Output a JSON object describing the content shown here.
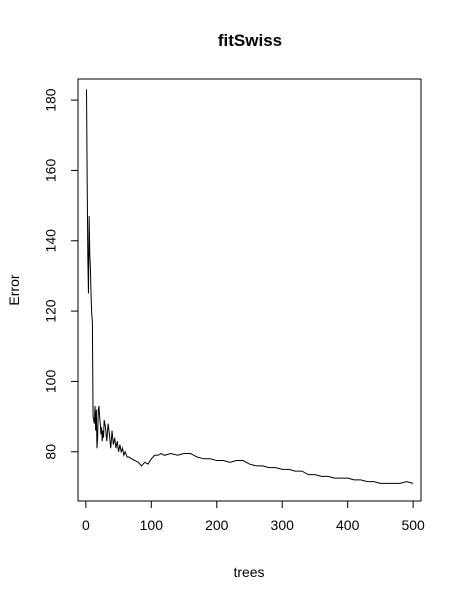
{
  "chart_data": {
    "type": "line",
    "title": "fitSwiss",
    "xlabel": "trees",
    "ylabel": "Error",
    "xlim": [
      -12,
      512
    ],
    "ylim": [
      66,
      186
    ],
    "xticks": [
      0,
      100,
      200,
      300,
      400,
      500
    ],
    "yticks": [
      80,
      100,
      120,
      140,
      160,
      180
    ],
    "xtick_labels": [
      "0",
      "100",
      "200",
      "300",
      "400",
      "500"
    ],
    "ytick_labels": [
      "80",
      "100",
      "120",
      "140",
      "160",
      "180"
    ],
    "grid": false,
    "legend": "none",
    "line_color": "#000000",
    "series": [
      {
        "x": [
          1,
          2,
          3,
          4,
          5,
          6,
          7,
          8,
          9,
          10,
          11,
          12,
          13,
          14,
          15,
          16,
          17,
          18,
          19,
          20,
          21,
          22,
          23,
          24,
          25,
          26,
          27,
          28,
          30,
          32,
          34,
          36,
          38,
          40,
          42,
          44,
          46,
          48,
          50,
          52,
          54,
          56,
          58,
          60,
          63,
          66,
          70,
          75,
          80,
          85,
          90,
          95,
          100,
          105,
          110,
          115,
          120,
          130,
          140,
          150,
          160,
          170,
          180,
          190,
          200,
          210,
          220,
          230,
          240,
          250,
          260,
          270,
          280,
          290,
          300,
          310,
          320,
          330,
          340,
          350,
          360,
          370,
          380,
          390,
          400,
          410,
          420,
          430,
          440,
          450,
          460,
          470,
          480,
          490,
          500
        ],
        "y": [
          183,
          158,
          135,
          125,
          147,
          136,
          132,
          124,
          119,
          117,
          90,
          89,
          88,
          93,
          86,
          92,
          81,
          84,
          92,
          93,
          90,
          88,
          85,
          87,
          83,
          86,
          84,
          89,
          87,
          83,
          88,
          85,
          81,
          86,
          82,
          84,
          81,
          83,
          80,
          82,
          80,
          81,
          79,
          80,
          78.5,
          78.5,
          78,
          77.5,
          77,
          76,
          77,
          76.5,
          78,
          79,
          79,
          79.5,
          79,
          79.5,
          79,
          79.5,
          79.5,
          78.5,
          78,
          78,
          77.5,
          77.5,
          77,
          77.5,
          77.5,
          76.5,
          76,
          76,
          75.5,
          75.5,
          75,
          75,
          74.5,
          74.5,
          73.5,
          73.5,
          73,
          73,
          72.5,
          72.5,
          72.5,
          72,
          72,
          71.5,
          71.5,
          71,
          71,
          71,
          71,
          71.5,
          71
        ]
      }
    ]
  }
}
